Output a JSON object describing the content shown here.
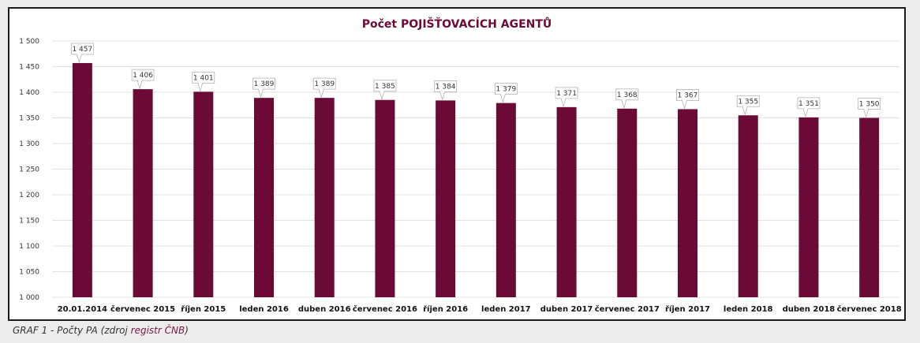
{
  "chart_data": {
    "type": "bar",
    "title": "Počet POJIŠŤOVACÍCH AGENTŮ",
    "categories": [
      "20.01.2014",
      "červenec 2015",
      "říjen 2015",
      "leden 2016",
      "duben 2016",
      "červenec 2016",
      "říjen 2016",
      "leden 2017",
      "duben 2017",
      "červenec 2017",
      "říjen 2017",
      "leden 2018",
      "duben 2018",
      "červenec 2018"
    ],
    "values": [
      1457,
      1406,
      1401,
      1389,
      1389,
      1385,
      1384,
      1379,
      1371,
      1368,
      1367,
      1355,
      1351,
      1350
    ],
    "data_labels": [
      "1 457",
      "1 406",
      "1 401",
      "1 389",
      "1 389",
      "1 385",
      "1 384",
      "1 379",
      "1 371",
      "1 368",
      "1 367",
      "1 355",
      "1 351",
      "1 350"
    ],
    "ylim": [
      1000,
      1500
    ],
    "y_ticks": [
      1000,
      1050,
      1100,
      1150,
      1200,
      1250,
      1300,
      1350,
      1400,
      1450,
      1500
    ],
    "y_tick_labels": [
      "1 000",
      "1 050",
      "1 100",
      "1 150",
      "1 200",
      "1 250",
      "1 300",
      "1 350",
      "1 400",
      "1 450",
      "1 500"
    ],
    "grid": true,
    "legend": "none",
    "xlabel": "",
    "ylabel": "",
    "colors": {
      "bar": "#6b0a37",
      "title": "#6b0a37",
      "grid": "#e1e1e1"
    }
  },
  "caption": {
    "prefix": "GRAF 1 - Počty PA (zdroj ",
    "link": "registr ČNB",
    "suffix": ")"
  }
}
